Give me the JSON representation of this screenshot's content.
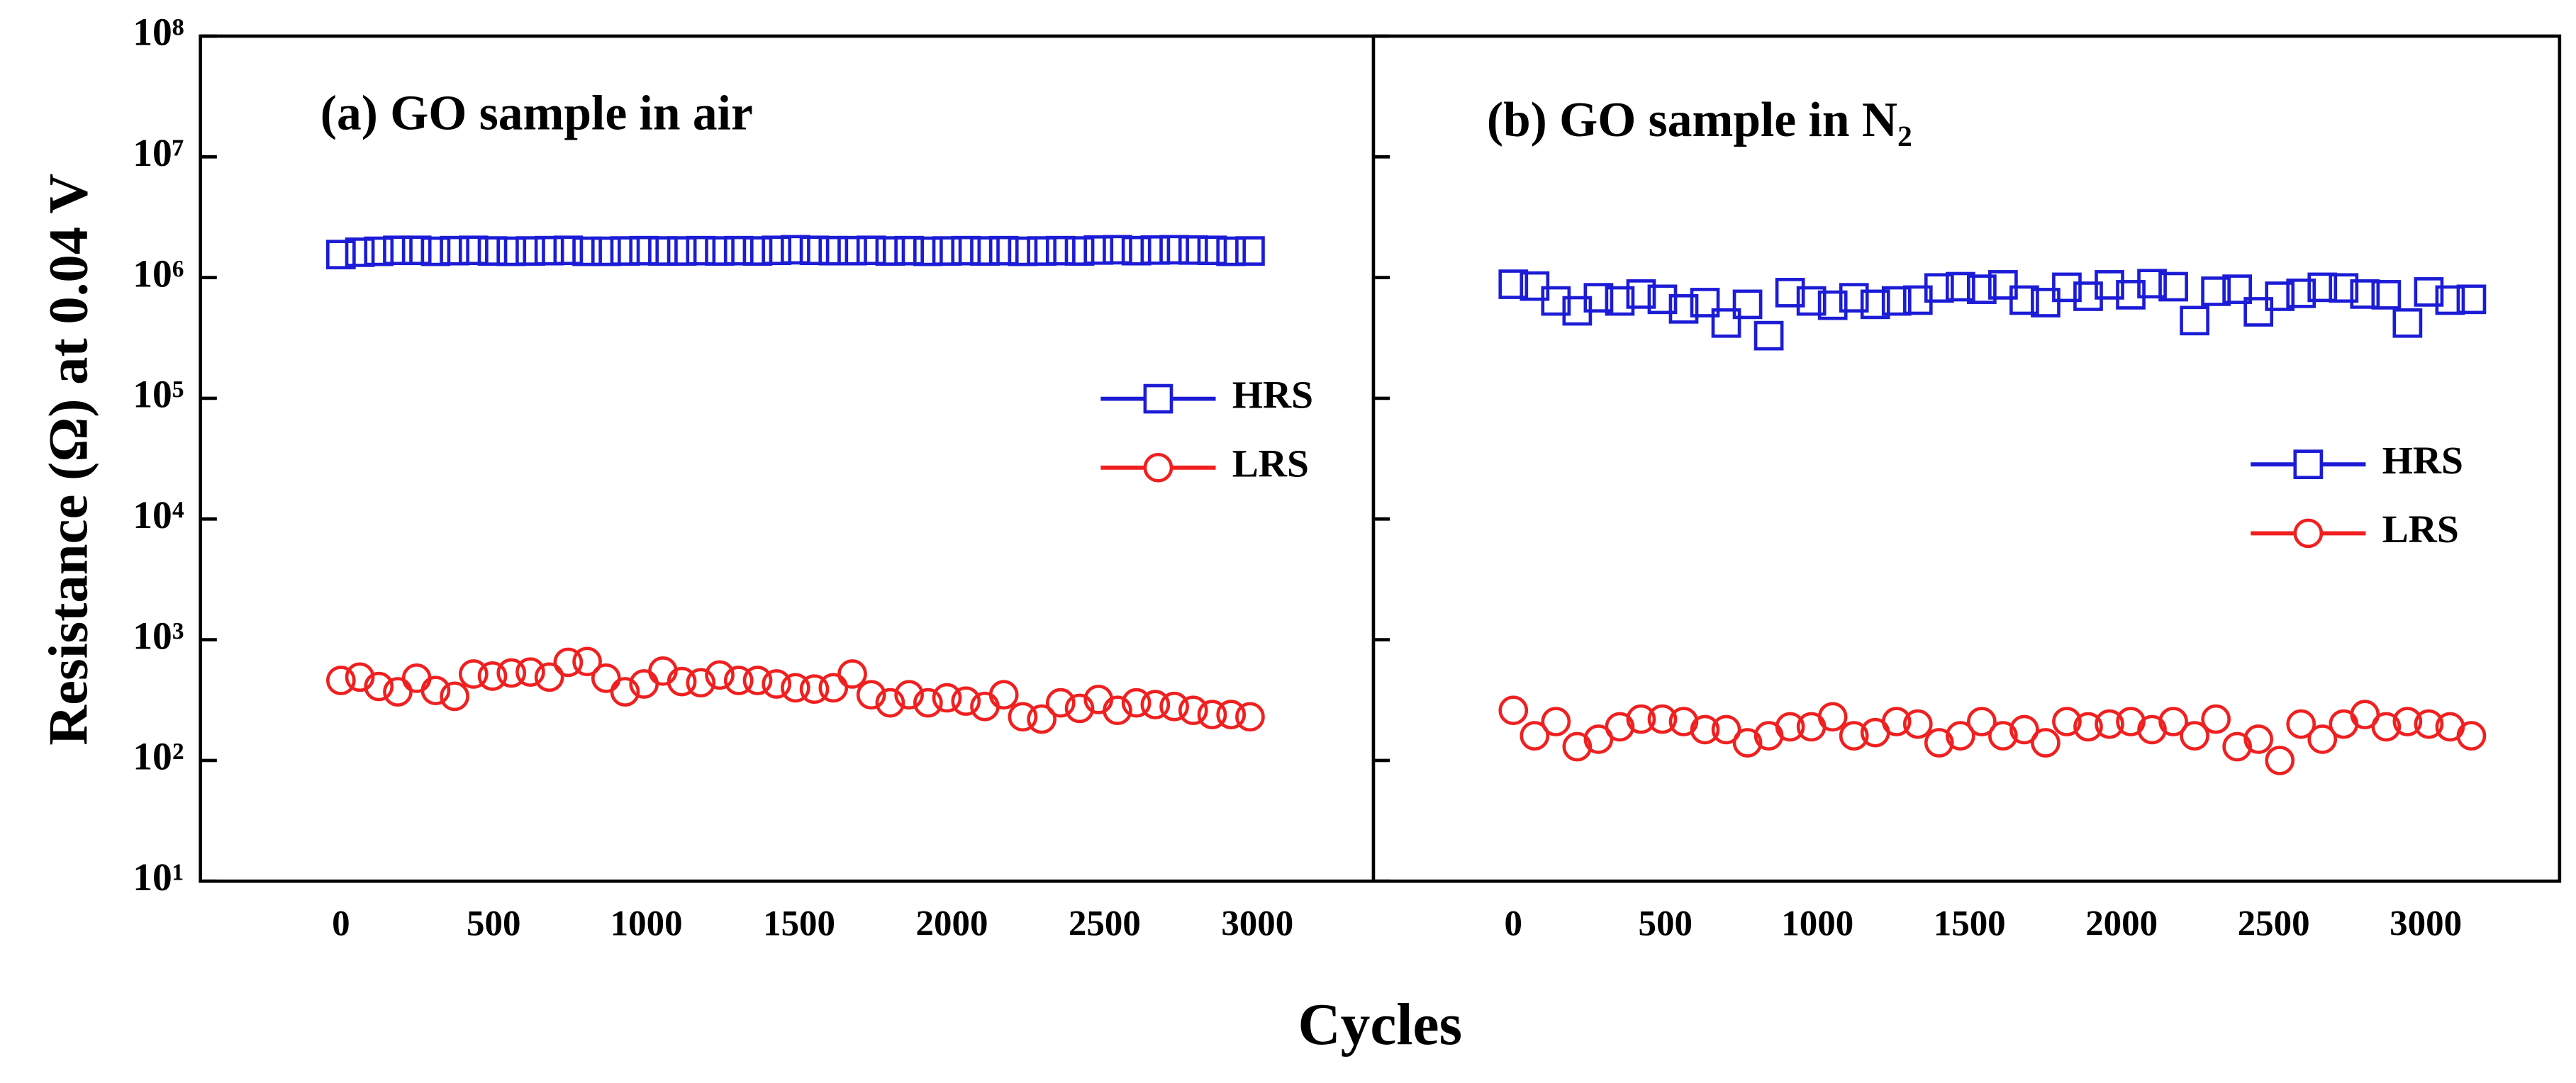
{
  "ylabel": "Resistance (Ω) at 0.04 V",
  "xlabel": "Cycles",
  "chart_data": [
    {
      "type": "scatter",
      "title": "(a) GO sample in air",
      "x": [
        0,
        62,
        124,
        186,
        248,
        310,
        372,
        434,
        496,
        558,
        620,
        682,
        744,
        806,
        868,
        930,
        992,
        1054,
        1116,
        1178,
        1240,
        1302,
        1364,
        1426,
        1488,
        1550,
        1612,
        1674,
        1736,
        1798,
        1860,
        1922,
        1984,
        2046,
        2108,
        2170,
        2232,
        2294,
        2356,
        2418,
        2480,
        2542,
        2604,
        2666,
        2728,
        2790,
        2852,
        2914,
        2976
      ],
      "series": [
        {
          "name": "HRS",
          "color": "#1c1cd6",
          "marker": "square",
          "values": [
            1550000,
            1620000,
            1650000,
            1680000,
            1680000,
            1650000,
            1670000,
            1680000,
            1660000,
            1650000,
            1660000,
            1670000,
            1680000,
            1650000,
            1650000,
            1660000,
            1670000,
            1660000,
            1660000,
            1670000,
            1660000,
            1670000,
            1660000,
            1680000,
            1700000,
            1680000,
            1670000,
            1670000,
            1680000,
            1660000,
            1670000,
            1650000,
            1660000,
            1670000,
            1660000,
            1670000,
            1650000,
            1660000,
            1670000,
            1660000,
            1690000,
            1700000,
            1670000,
            1690000,
            1700000,
            1690000,
            1680000,
            1650000,
            1660000
          ]
        },
        {
          "name": "LRS",
          "color": "#f02020",
          "marker": "circle",
          "values": [
            460,
            490,
            410,
            370,
            480,
            380,
            340,
            520,
            500,
            530,
            540,
            490,
            650,
            660,
            480,
            370,
            430,
            550,
            450,
            440,
            510,
            460,
            460,
            430,
            400,
            390,
            400,
            520,
            350,
            300,
            350,
            300,
            330,
            310,
            280,
            350,
            230,
            220,
            300,
            270,
            320,
            260,
            300,
            290,
            280,
            260,
            240,
            240,
            230
          ]
        }
      ],
      "xlim": [
        -460,
        3380
      ],
      "xticks": [
        0,
        500,
        1000,
        1500,
        2000,
        2500,
        3000
      ],
      "ylim": [
        10,
        100000000
      ],
      "log_y": true,
      "yticks": [
        {
          "value": 10,
          "label": "10¹"
        },
        {
          "value": 100,
          "label": "10²"
        },
        {
          "value": 1000,
          "label": "10³"
        },
        {
          "value": 10000,
          "label": "10⁴"
        },
        {
          "value": 100000,
          "label": "10⁵"
        },
        {
          "value": 1000000,
          "label": "10⁶"
        },
        {
          "value": 10000000,
          "label": "10⁷"
        },
        {
          "value": 100000000,
          "label": "10⁸"
        }
      ],
      "legend": "right"
    },
    {
      "type": "scatter",
      "title": "(b) GO sample in N₂",
      "x": [
        0,
        70,
        140,
        210,
        280,
        350,
        420,
        490,
        560,
        630,
        700,
        770,
        840,
        910,
        980,
        1050,
        1120,
        1190,
        1260,
        1330,
        1400,
        1470,
        1540,
        1610,
        1680,
        1750,
        1820,
        1890,
        1960,
        2030,
        2100,
        2170,
        2240,
        2310,
        2380,
        2450,
        2520,
        2590,
        2660,
        2730,
        2800,
        2870,
        2940,
        3010,
        3080,
        3150
      ],
      "series": [
        {
          "name": "HRS",
          "color": "#1c1cd6",
          "marker": "square",
          "values": [
            880000,
            850000,
            640000,
            530000,
            680000,
            640000,
            730000,
            660000,
            550000,
            620000,
            420000,
            600000,
            330000,
            750000,
            640000,
            590000,
            680000,
            600000,
            640000,
            650000,
            820000,
            840000,
            800000,
            870000,
            650000,
            620000,
            830000,
            700000,
            870000,
            720000,
            890000,
            840000,
            440000,
            770000,
            800000,
            520000,
            700000,
            740000,
            830000,
            820000,
            730000,
            720000,
            420000,
            760000,
            650000,
            660000
          ]
        },
        {
          "name": "LRS",
          "color": "#f02020",
          "marker": "circle",
          "values": [
            260,
            160,
            210,
            130,
            150,
            190,
            220,
            220,
            210,
            180,
            180,
            140,
            160,
            190,
            190,
            230,
            160,
            170,
            210,
            200,
            140,
            160,
            210,
            160,
            180,
            140,
            210,
            190,
            200,
            210,
            180,
            210,
            160,
            220,
            130,
            150,
            100,
            200,
            150,
            200,
            240,
            190,
            210,
            200,
            190,
            160
          ]
        }
      ],
      "xlim": [
        -460,
        3440
      ],
      "xticks": [
        0,
        500,
        1000,
        1500,
        2000,
        2500,
        3000
      ],
      "ylim": [
        10,
        100000000
      ],
      "log_y": true,
      "yticks": [
        10,
        100,
        1000,
        10000,
        100000,
        1000000,
        10000000,
        100000000
      ],
      "legend": "right"
    }
  ]
}
